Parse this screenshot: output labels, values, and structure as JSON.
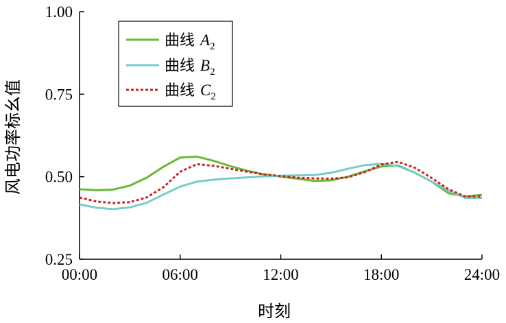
{
  "chart_data": {
    "type": "line",
    "xlabel": "时刻",
    "ylabel": "风电功率标幺值",
    "xlim": [
      0,
      24
    ],
    "ylim": [
      0.25,
      1.0
    ],
    "x_ticks": [
      0,
      6,
      12,
      18,
      24
    ],
    "x_tick_labels": [
      "00:00",
      "06:00",
      "12:00",
      "18:00",
      "24:00"
    ],
    "y_ticks": [
      0.25,
      0.5,
      0.75,
      1.0
    ],
    "y_tick_labels": [
      "0.25",
      "0.50",
      "0.75",
      "1.00"
    ],
    "grid": false,
    "legend_position": "top-left",
    "x": [
      0,
      1,
      2,
      3,
      4,
      5,
      6,
      7,
      8,
      9,
      10,
      11,
      12,
      13,
      14,
      15,
      16,
      17,
      18,
      19,
      20,
      21,
      22,
      23,
      24
    ],
    "series": [
      {
        "name": "曲线",
        "symbol": "A",
        "subscript": "2",
        "color": "#66bb33",
        "dash": "solid",
        "values": [
          0.462,
          0.459,
          0.461,
          0.473,
          0.497,
          0.53,
          0.558,
          0.561,
          0.548,
          0.532,
          0.518,
          0.507,
          0.5,
          0.494,
          0.487,
          0.489,
          0.5,
          0.516,
          0.531,
          0.534,
          0.512,
          0.485,
          0.45,
          0.44,
          0.445
        ]
      },
      {
        "name": "曲线",
        "symbol": "B",
        "subscript": "2",
        "color": "#77cccc",
        "dash": "solid",
        "values": [
          0.416,
          0.406,
          0.402,
          0.407,
          0.421,
          0.446,
          0.47,
          0.485,
          0.491,
          0.495,
          0.498,
          0.501,
          0.503,
          0.504,
          0.505,
          0.512,
          0.524,
          0.535,
          0.539,
          0.532,
          0.512,
          0.485,
          0.458,
          0.436,
          0.436
        ]
      },
      {
        "name": "曲线",
        "symbol": "C",
        "subscript": "2",
        "color": "#cc2222",
        "dash": "dotted",
        "values": [
          0.437,
          0.425,
          0.42,
          0.423,
          0.437,
          0.468,
          0.515,
          0.538,
          0.533,
          0.524,
          0.515,
          0.507,
          0.502,
          0.497,
          0.495,
          0.494,
          0.498,
          0.514,
          0.537,
          0.545,
          0.527,
          0.496,
          0.462,
          0.44,
          0.44
        ]
      }
    ]
  }
}
